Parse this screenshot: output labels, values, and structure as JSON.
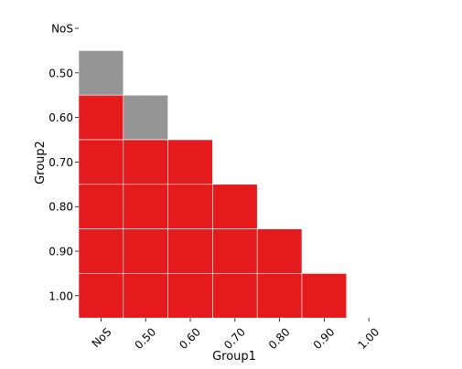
{
  "chart_data": {
    "type": "heatmap",
    "title": "",
    "xlabel": "Group1",
    "ylabel": "Group2",
    "x_categories": [
      "NoS",
      "0.50",
      "0.60",
      "0.70",
      "0.80",
      "0.90",
      "1.00"
    ],
    "y_categories": [
      "NoS",
      "0.50",
      "0.60",
      "0.70",
      "0.80",
      "0.90",
      "1.00"
    ],
    "colors": {
      "red": "#e41a1c",
      "gray": "#999999"
    },
    "cells": [
      {
        "x": "NoS",
        "y": "0.50",
        "color": "gray"
      },
      {
        "x": "NoS",
        "y": "0.60",
        "color": "red"
      },
      {
        "x": "0.50",
        "y": "0.60",
        "color": "gray"
      },
      {
        "x": "NoS",
        "y": "0.70",
        "color": "red"
      },
      {
        "x": "0.50",
        "y": "0.70",
        "color": "red"
      },
      {
        "x": "0.60",
        "y": "0.70",
        "color": "red"
      },
      {
        "x": "NoS",
        "y": "0.80",
        "color": "red"
      },
      {
        "x": "0.50",
        "y": "0.80",
        "color": "red"
      },
      {
        "x": "0.60",
        "y": "0.80",
        "color": "red"
      },
      {
        "x": "0.70",
        "y": "0.80",
        "color": "red"
      },
      {
        "x": "NoS",
        "y": "0.90",
        "color": "red"
      },
      {
        "x": "0.50",
        "y": "0.90",
        "color": "red"
      },
      {
        "x": "0.60",
        "y": "0.90",
        "color": "red"
      },
      {
        "x": "0.70",
        "y": "0.90",
        "color": "red"
      },
      {
        "x": "0.80",
        "y": "0.90",
        "color": "red"
      },
      {
        "x": "NoS",
        "y": "1.00",
        "color": "red"
      },
      {
        "x": "0.50",
        "y": "1.00",
        "color": "red"
      },
      {
        "x": "0.60",
        "y": "1.00",
        "color": "red"
      },
      {
        "x": "0.70",
        "y": "1.00",
        "color": "red"
      },
      {
        "x": "0.80",
        "y": "1.00",
        "color": "red"
      },
      {
        "x": "0.90",
        "y": "1.00",
        "color": "red"
      }
    ],
    "grid": false,
    "legend": "none"
  }
}
